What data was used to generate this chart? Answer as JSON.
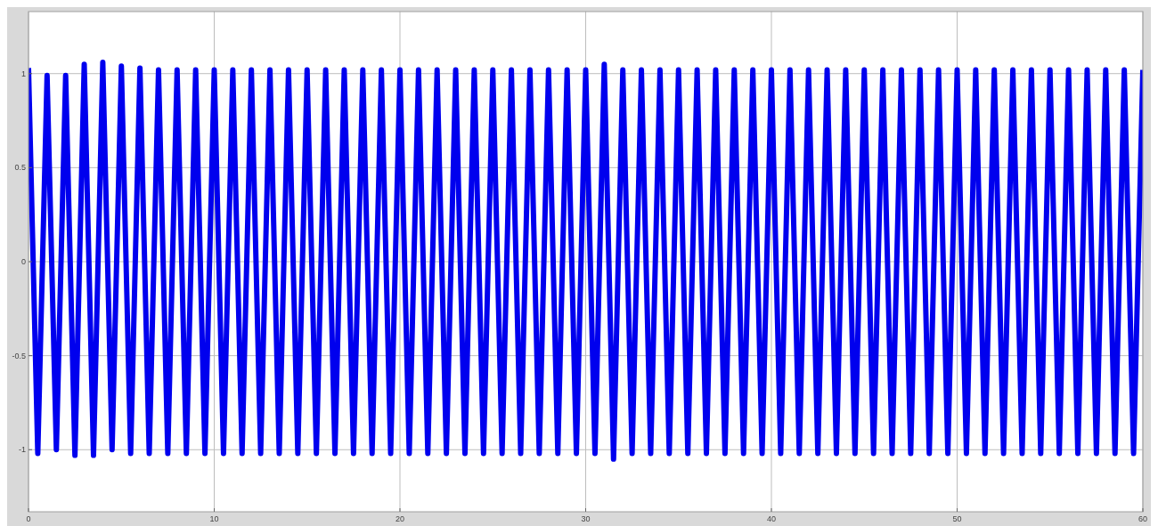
{
  "chart_data": {
    "type": "line",
    "xlim": [
      0,
      60
    ],
    "ylim": [
      -1.33,
      1.33
    ],
    "xticks": [
      0,
      10,
      20,
      30,
      40,
      50,
      60
    ],
    "yticks": [
      -1,
      -0.5,
      0,
      0.5,
      1
    ],
    "grid": true,
    "x": [
      0,
      0.5,
      1,
      1.5,
      2,
      2.5,
      3,
      3.5,
      4,
      4.5,
      5,
      5.5,
      6,
      6.5,
      7,
      7.5,
      8,
      8.5,
      9,
      9.5,
      10,
      10.5,
      11,
      11.5,
      12,
      12.5,
      13,
      13.5,
      14,
      14.5,
      15,
      15.5,
      16,
      16.5,
      17,
      17.5,
      18,
      18.5,
      19,
      19.5,
      20,
      20.5,
      21,
      21.5,
      22,
      22.5,
      23,
      23.5,
      24,
      24.5,
      25,
      25.5,
      26,
      26.5,
      27,
      27.5,
      28,
      28.5,
      29,
      29.5,
      30,
      30.5,
      31,
      31.5,
      32,
      32.5,
      33,
      33.5,
      34,
      34.5,
      35,
      35.5,
      36,
      36.5,
      37,
      37.5,
      38,
      38.5,
      39,
      39.5,
      40,
      40.5,
      41,
      41.5,
      42,
      42.5,
      43,
      43.5,
      44,
      44.5,
      45,
      45.5,
      46,
      46.5,
      47,
      47.5,
      48,
      48.5,
      49,
      49.5,
      50,
      50.5,
      51,
      51.5,
      52,
      52.5,
      53,
      53.5,
      54,
      54.5,
      55,
      55.5,
      56,
      56.5,
      57,
      57.5,
      58,
      58.5,
      59,
      59.5,
      60
    ],
    "series": [
      {
        "color": "#0000ee",
        "values": [
          1.03,
          -1.02,
          0.99,
          -1.0,
          0.99,
          -1.03,
          1.05,
          -1.03,
          1.06,
          -1.0,
          1.04,
          -1.02,
          1.03,
          -1.02,
          1.02,
          -1.02,
          1.02,
          -1.02,
          1.02,
          -1.02,
          1.02,
          -1.02,
          1.02,
          -1.02,
          1.02,
          -1.02,
          1.02,
          -1.02,
          1.02,
          -1.02,
          1.02,
          -1.02,
          1.02,
          -1.02,
          1.02,
          -1.02,
          1.02,
          -1.02,
          1.02,
          -1.02,
          1.02,
          -1.02,
          1.02,
          -1.02,
          1.02,
          -1.02,
          1.02,
          -1.02,
          1.02,
          -1.02,
          1.02,
          -1.02,
          1.02,
          -1.02,
          1.02,
          -1.02,
          1.02,
          -1.02,
          1.02,
          -1.02,
          1.02,
          -1.02,
          1.05,
          -1.05,
          1.02,
          -1.02,
          1.02,
          -1.02,
          1.02,
          -1.02,
          1.02,
          -1.02,
          1.02,
          -1.02,
          1.02,
          -1.02,
          1.02,
          -1.02,
          1.02,
          -1.02,
          1.02,
          -1.02,
          1.02,
          -1.02,
          1.02,
          -1.02,
          1.02,
          -1.02,
          1.02,
          -1.02,
          1.02,
          -1.02,
          1.02,
          -1.02,
          1.02,
          -1.02,
          1.02,
          -1.02,
          1.02,
          -1.02,
          1.02,
          -1.02,
          1.02,
          -1.02,
          1.02,
          -1.02,
          1.02,
          -1.02,
          1.02,
          -1.02,
          1.02,
          -1.02,
          1.02,
          -1.02,
          1.02,
          -1.02,
          1.02,
          -1.02,
          1.02,
          -1.02,
          1.02
        ]
      }
    ]
  }
}
